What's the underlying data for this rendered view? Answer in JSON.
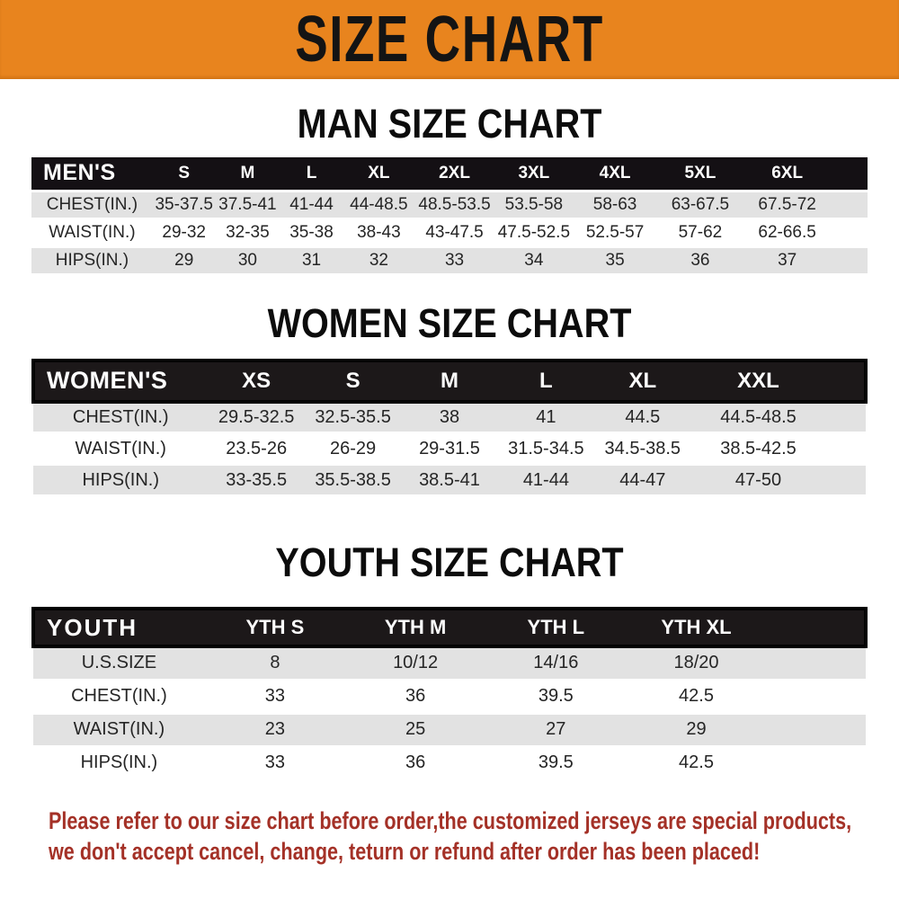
{
  "banner": {
    "title": "SIZE CHART"
  },
  "colors": {
    "banner_orange": "#e8841e",
    "header_black": "#141014",
    "row_gray": "#e2e2e2",
    "row_white": "#ffffff",
    "note_red": "#a43127"
  },
  "sections": {
    "men": {
      "heading": "MAN SIZE CHART",
      "corner_label": "MEN'S",
      "columns": [
        "S",
        "M",
        "L",
        "XL",
        "2XL",
        "3XL",
        "4XL",
        "5XL",
        "6XL"
      ],
      "rows": [
        {
          "label": "CHEST(IN.)",
          "values": [
            "35-37.5",
            "37.5-41",
            "41-44",
            "44-48.5",
            "48.5-53.5",
            "53.5-58",
            "58-63",
            "63-67.5",
            "67.5-72"
          ]
        },
        {
          "label": "WAIST(IN.)",
          "values": [
            "29-32",
            "32-35",
            "35-38",
            "38-43",
            "43-47.5",
            "47.5-52.5",
            "52.5-57",
            "57-62",
            "62-66.5"
          ]
        },
        {
          "label": "HIPS(IN.)",
          "values": [
            "29",
            "30",
            "31",
            "32",
            "33",
            "34",
            "35",
            "36",
            "37"
          ]
        }
      ]
    },
    "women": {
      "heading": "WOMEN SIZE CHART",
      "corner_label": "WOMEN'S",
      "columns": [
        "XS",
        "S",
        "M",
        "L",
        "XL",
        "XXL"
      ],
      "rows": [
        {
          "label": "CHEST(IN.)",
          "values": [
            "29.5-32.5",
            "32.5-35.5",
            "38",
            "41",
            "44.5",
            "44.5-48.5"
          ]
        },
        {
          "label": "WAIST(IN.)",
          "values": [
            "23.5-26",
            "26-29",
            "29-31.5",
            "31.5-34.5",
            "34.5-38.5",
            "38.5-42.5"
          ]
        },
        {
          "label": "HIPS(IN.)",
          "values": [
            "33-35.5",
            "35.5-38.5",
            "38.5-41",
            "41-44",
            "44-47",
            "47-50"
          ]
        }
      ]
    },
    "youth": {
      "heading": "YOUTH SIZE CHART",
      "corner_label": "YOUTH",
      "columns": [
        "YTH S",
        "YTH M",
        "YTH L",
        "YTH XL"
      ],
      "rows": [
        {
          "label": "U.S.SIZE",
          "values": [
            "8",
            "10/12",
            "14/16",
            "18/20"
          ]
        },
        {
          "label": "CHEST(IN.)",
          "values": [
            "33",
            "36",
            "39.5",
            "42.5"
          ]
        },
        {
          "label": "WAIST(IN.)",
          "values": [
            "23",
            "25",
            "27",
            "29"
          ]
        },
        {
          "label": "HIPS(IN.)",
          "values": [
            "33",
            "36",
            "39.5",
            "42.5"
          ]
        }
      ]
    }
  },
  "note": {
    "line1": "Please refer to our size chart before order,the customized jerseys are special products,",
    "line2": "we don't accept cancel, change, teturn or refund after order has been placed!"
  }
}
